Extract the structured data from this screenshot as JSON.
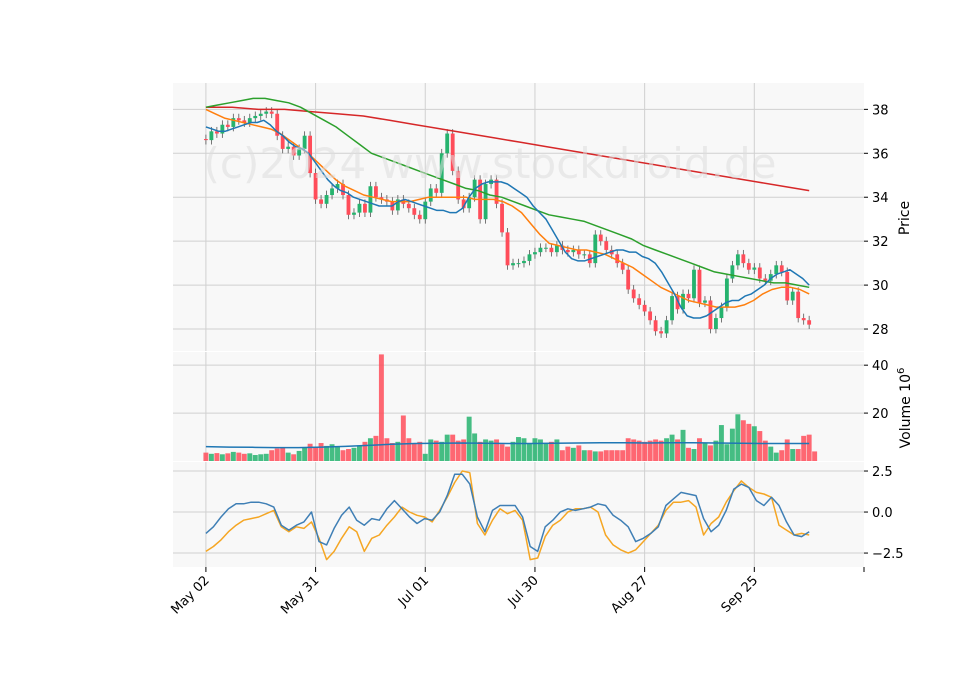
{
  "chart_data": {
    "type": "candlestick",
    "watermark": "(c)2024 www.stockdroid.de",
    "colors": {
      "up": "#26b36e",
      "down": "#ff4d5a",
      "ma_short": "#1f77b4",
      "ma_mid": "#ff7f0e",
      "ma_long": "#2ca02c",
      "ma_longest": "#d62728",
      "volume_ma": "#1f77b4",
      "osc_fast": "#3f7fb5",
      "osc_slow": "#f5a623",
      "panel_bg": "#f8f8f8",
      "grid": "#d0d0d0"
    },
    "x_ticks": [
      {
        "label": "May 02",
        "i": 0
      },
      {
        "label": "May 31",
        "i": 20
      },
      {
        "label": "Jul 01",
        "i": 40
      },
      {
        "label": "Jul 30",
        "i": 60
      },
      {
        "label": "Aug 27",
        "i": 80
      },
      {
        "label": "Sep 25",
        "i": 100
      }
    ],
    "x_range": [
      -6,
      120
    ],
    "price_panel": {
      "ylabel": "Price",
      "ylim": [
        27.0,
        39.2
      ],
      "yticks": [
        28,
        30,
        32,
        34,
        36,
        38
      ],
      "close": [
        36.6,
        37.0,
        36.9,
        37.3,
        37.2,
        37.6,
        37.5,
        37.4,
        37.6,
        37.7,
        37.8,
        37.9,
        37.8,
        36.8,
        36.2,
        36.3,
        35.9,
        36.2,
        36.8,
        35.1,
        33.9,
        33.7,
        34.1,
        34.4,
        34.6,
        34.1,
        33.2,
        33.3,
        33.7,
        33.3,
        34.5,
        34.0,
        33.9,
        33.8,
        33.4,
        33.9,
        33.7,
        33.5,
        33.2,
        33.0,
        33.8,
        34.4,
        34.2,
        36.0,
        36.9,
        35.2,
        33.9,
        33.5,
        34.0,
        34.8,
        33.0,
        34.6,
        34.8,
        33.7,
        32.4,
        30.9,
        31.0,
        31.0,
        31.1,
        31.4,
        31.5,
        31.7,
        31.7,
        31.5,
        31.8,
        31.6,
        31.5,
        31.6,
        31.4,
        31.4,
        31.0,
        32.3,
        32.0,
        31.6,
        31.4,
        31.0,
        30.7,
        29.8,
        29.4,
        29.1,
        28.8,
        28.4,
        27.9,
        27.8,
        28.4,
        29.5,
        28.9,
        29.6,
        29.4,
        30.7,
        29.2,
        29.3,
        28.0,
        28.5,
        29.0,
        30.3,
        30.9,
        31.4,
        31.0,
        30.7,
        30.8,
        30.3,
        30.2,
        30.5,
        30.9,
        30.6,
        29.3,
        29.7,
        28.5,
        28.4,
        28.2
      ],
      "ma_short": [
        37.2,
        37.1,
        37.0,
        37.0,
        37.1,
        37.2,
        37.3,
        37.4,
        37.4,
        37.5,
        37.3,
        37.0,
        36.8,
        36.5,
        36.3,
        36.2,
        36.0,
        35.6,
        35.2,
        34.8,
        34.5,
        34.3,
        34.2,
        34.0,
        33.9,
        33.8,
        33.7,
        33.6,
        33.6,
        33.6,
        33.8,
        33.9,
        33.8,
        33.7,
        33.6,
        33.5,
        33.4,
        33.4,
        33.3,
        33.3,
        33.5,
        34.0,
        34.4,
        34.6,
        34.7,
        34.7,
        34.7,
        34.6,
        34.4,
        34.2,
        34.0,
        33.6,
        33.3,
        33.0,
        32.5,
        32.0,
        31.5,
        31.2,
        31.1,
        31.1,
        31.2,
        31.3,
        31.4,
        31.5,
        31.6,
        31.6,
        31.5,
        31.5,
        31.3,
        31.2,
        31.0,
        30.6,
        30.1,
        29.6,
        29.0,
        28.6,
        28.5,
        28.5,
        28.6,
        28.8,
        29.0,
        29.2,
        29.3,
        29.3,
        29.5,
        29.6,
        29.8,
        30.0,
        30.3,
        30.5,
        30.6,
        30.7,
        30.5,
        30.3,
        30.0
      ],
      "ma_mid": [
        38.0,
        37.8,
        37.6,
        37.5,
        37.4,
        37.3,
        37.2,
        37.1,
        36.9,
        36.6,
        36.3,
        36.0,
        35.6,
        35.2,
        34.8,
        34.5,
        34.3,
        34.1,
        34.0,
        33.9,
        33.8,
        33.8,
        33.8,
        33.9,
        34.0,
        34.0,
        34.0,
        34.0,
        34.0,
        33.9,
        33.9,
        33.9,
        33.8,
        33.6,
        33.3,
        32.8,
        32.3,
        31.9,
        31.8,
        31.7,
        31.6,
        31.6,
        31.5,
        31.4,
        31.2,
        31.0,
        30.8,
        30.5,
        30.2,
        29.9,
        29.7,
        29.5,
        29.3,
        29.2,
        29.1,
        29.0,
        29.0,
        29.0,
        29.1,
        29.3,
        29.6,
        29.8,
        29.9,
        29.9,
        29.8,
        29.6
      ],
      "ma_long": [
        38.1,
        38.2,
        38.3,
        38.4,
        38.5,
        38.5,
        38.4,
        38.3,
        38.1,
        37.8,
        37.5,
        37.2,
        36.8,
        36.4,
        36.0,
        35.8,
        35.6,
        35.4,
        35.2,
        35.0,
        34.8,
        34.6,
        34.4,
        34.3,
        34.1,
        34.0,
        33.8,
        33.6,
        33.4,
        33.2,
        33.1,
        33.0,
        32.9,
        32.7,
        32.5,
        32.3,
        32.1,
        31.8,
        31.6,
        31.4,
        31.2,
        31.0,
        30.8,
        30.6,
        30.5,
        30.4,
        30.3,
        30.2,
        30.1,
        30.1,
        30.0,
        29.9
      ],
      "ma_longest": [
        38.1,
        38.1,
        38.0,
        38.0,
        37.9,
        37.8,
        37.7,
        37.5,
        37.3,
        37.1,
        36.9,
        36.7,
        36.5,
        36.3,
        36.1,
        35.9,
        35.7,
        35.5,
        35.3,
        35.1,
        34.9,
        34.7,
        34.5,
        34.3
      ]
    },
    "volume_panel": {
      "ylabel": "Volume",
      "ylabel_unit": "10",
      "ylabel_exp": "6",
      "ylim": [
        0,
        45.5
      ],
      "yticks": [
        20,
        40
      ],
      "values": [
        3.5,
        3.0,
        3.3,
        2.8,
        3.2,
        3.8,
        3.5,
        3.0,
        3.2,
        2.5,
        2.8,
        3.0,
        4.5,
        5.2,
        5.8,
        3.5,
        2.8,
        4.2,
        5.5,
        7.2,
        6.0,
        7.5,
        6.3,
        7.0,
        6.0,
        4.5,
        5.0,
        5.5,
        6.5,
        8.0,
        9.5,
        10.5,
        44.5,
        9.5,
        7.5,
        8.0,
        19.0,
        9.5,
        7.5,
        8.0,
        3.0,
        9.0,
        8.5,
        8.0,
        11.0,
        11.0,
        8.5,
        9.0,
        18.5,
        11.5,
        8.0,
        9.0,
        8.5,
        9.0,
        7.0,
        6.0,
        8.0,
        10.0,
        9.5,
        7.5,
        9.5,
        9.0,
        7.5,
        8.0,
        9.0,
        4.5,
        6.0,
        5.5,
        6.5,
        4.5,
        4.5,
        4.0,
        4.0,
        4.5,
        4.5,
        4.5,
        4.5,
        9.5,
        9.0,
        8.5,
        8.0,
        8.5,
        9.0,
        8.5,
        9.5,
        11.0,
        9.0,
        13.0,
        5.5,
        5.0,
        9.5,
        7.5,
        6.5,
        8.5,
        15.0,
        7.0,
        13.5,
        19.5,
        17.0,
        15.5,
        14.5,
        12.5,
        8.5,
        6.0,
        3.5,
        4.5,
        9.0,
        5.0,
        5.0,
        10.5,
        11.0,
        4.0
      ],
      "ma": [
        6.0,
        5.8,
        5.7,
        5.6,
        5.6,
        5.8,
        6.1,
        6.5,
        7.0,
        7.3,
        7.4,
        7.5,
        7.4,
        7.3,
        7.3,
        7.4,
        7.5,
        7.6,
        7.6,
        7.5,
        7.6,
        7.6,
        7.5,
        7.4,
        7.3,
        7.3,
        7.3
      ]
    },
    "oscillator_panel": {
      "ylim": [
        -3.35,
        3.05
      ],
      "yticks": [
        -2.5,
        0.0,
        2.5
      ],
      "ytick_labels": [
        "−2.5",
        "0.0",
        "2.5"
      ],
      "fast": [
        -1.3,
        -0.9,
        -0.3,
        0.2,
        0.5,
        0.5,
        0.6,
        0.6,
        0.5,
        0.3,
        -0.8,
        -1.1,
        -0.8,
        -0.6,
        0.0,
        -1.8,
        -2.0,
        -1.0,
        -0.2,
        0.3,
        -0.5,
        -0.8,
        -0.4,
        -0.5,
        0.2,
        0.7,
        0.2,
        -0.3,
        -0.7,
        -0.4,
        -0.5,
        0.0,
        1.0,
        2.3,
        2.3,
        1.7,
        -0.3,
        -1.2,
        0.1,
        0.4,
        0.4,
        0.4,
        -0.3,
        -2.1,
        -2.4,
        -0.9,
        -0.5,
        0.0,
        0.2,
        0.1,
        0.2,
        0.3,
        0.5,
        0.4,
        -0.2,
        -0.5,
        -0.9,
        -1.8,
        -1.6,
        -1.3,
        -0.9,
        0.4,
        0.8,
        1.2,
        1.1,
        1.0,
        -0.4,
        -1.2,
        -0.8,
        0.1,
        1.4,
        1.7,
        1.5,
        0.7,
        0.4,
        0.9,
        0.4,
        -0.6,
        -1.4,
        -1.5,
        -1.2
      ],
      "slow": [
        -2.4,
        -2.1,
        -1.7,
        -1.2,
        -0.8,
        -0.5,
        -0.4,
        -0.3,
        -0.1,
        0.1,
        -0.9,
        -1.2,
        -0.9,
        -1.0,
        -0.6,
        -1.6,
        -2.9,
        -2.4,
        -1.6,
        -0.9,
        -1.2,
        -2.4,
        -1.6,
        -1.4,
        -0.8,
        -0.3,
        0.3,
        0.0,
        -0.2,
        -0.3,
        -0.6,
        0.1,
        0.9,
        1.8,
        2.5,
        2.4,
        -0.7,
        -1.4,
        -0.5,
        0.2,
        -0.1,
        0.1,
        -0.5,
        -2.9,
        -2.8,
        -1.5,
        -0.8,
        -0.5,
        0.0,
        0.2,
        0.2,
        0.3,
        0.0,
        -1.4,
        -2.0,
        -2.3,
        -2.5,
        -2.3,
        -1.8,
        -1.3,
        -0.8,
        0.1,
        0.6,
        0.6,
        0.7,
        0.3,
        -1.4,
        -0.7,
        -0.3,
        0.6,
        1.3,
        1.9,
        1.5,
        1.2,
        1.1,
        0.9,
        -0.8,
        -1.1,
        -1.4,
        -1.3,
        -1.4
      ]
    }
  }
}
